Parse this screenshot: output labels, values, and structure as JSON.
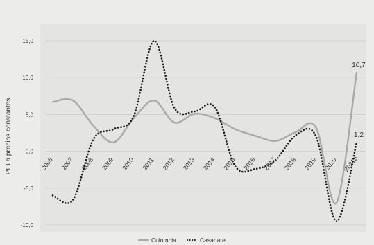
{
  "chart_data": {
    "type": "line",
    "categories": [
      "2006",
      "2007",
      "2008",
      "2009",
      "2010",
      "2011",
      "2012",
      "2013",
      "2014",
      "2015",
      "2016",
      "2017",
      "2018",
      "2019",
      "2020",
      "2021p"
    ],
    "series": [
      {
        "name": "Colombia",
        "values": [
          6.7,
          6.9,
          3.5,
          1.2,
          4.5,
          6.9,
          3.9,
          5.1,
          4.5,
          3.0,
          2.1,
          1.4,
          2.6,
          3.2,
          -7.0,
          10.7
        ],
        "color": "#a9a9a9",
        "style": "solid"
      },
      {
        "name": "Casanare",
        "values": [
          -6.0,
          -6.6,
          1.6,
          3.0,
          4.8,
          15.0,
          5.9,
          5.4,
          6.0,
          -2.0,
          -2.4,
          -1.2,
          2.2,
          2.0,
          -9.5,
          1.2
        ],
        "color": "#1a1a1a",
        "style": "dotted"
      }
    ],
    "ylabel": "PIB a precios constantes",
    "yticks": [
      "-10,0",
      "-5,0",
      "0,0",
      "5,0",
      "10,0",
      "15,0"
    ],
    "ylim": [
      -10,
      15
    ],
    "grid": true,
    "legend": "bottom",
    "data_labels": [
      {
        "series": "Colombia",
        "category": "2021p",
        "text": "10,7"
      },
      {
        "series": "Casanare",
        "category": "2021p",
        "text": "1,2"
      }
    ]
  }
}
